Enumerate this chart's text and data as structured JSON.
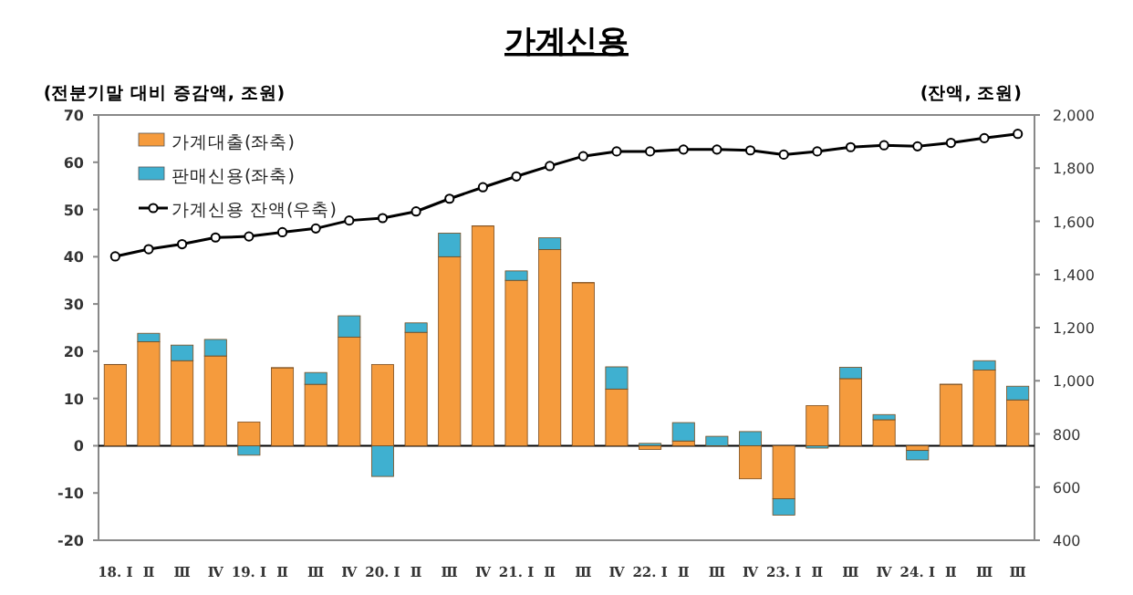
{
  "chart_data": {
    "type": "bar",
    "title": "가계신용",
    "ylabel": "(전분기말 대비 증감액, 조원)",
    "y2label": "(잔액, 조원)",
    "categories": [
      "18. Ⅰ",
      "Ⅱ",
      "Ⅲ",
      "Ⅳ",
      "19. Ⅰ",
      "Ⅱ",
      "Ⅲ",
      "Ⅳ",
      "20. Ⅰ",
      "Ⅱ",
      "Ⅲ",
      "Ⅳ",
      "21. Ⅰ",
      "Ⅱ",
      "Ⅲ",
      "Ⅳ",
      "22. Ⅰ",
      "Ⅱ",
      "Ⅲ",
      "Ⅳ",
      "23. Ⅰ",
      "Ⅱ",
      "Ⅲ",
      "Ⅳ",
      "24. Ⅰ",
      "Ⅱ",
      "Ⅲ",
      "Ⅲ"
    ],
    "stacked": true,
    "legend": "top left",
    "series": [
      {
        "name": "가계대출(좌축)",
        "color": "#f59b3d",
        "values": [
          17.2,
          22,
          18,
          19,
          5,
          16.5,
          13,
          23,
          17.2,
          24,
          40,
          46.5,
          35,
          41.5,
          34.5,
          12,
          -0.8,
          1,
          null,
          -7,
          -11.2,
          8.5,
          14.2,
          5.5,
          -1,
          13,
          16,
          9.7
        ]
      },
      {
        "name": "판매신용(좌축)",
        "color": "#3fb0d0",
        "values": [
          0,
          1.8,
          3.3,
          3.5,
          -2,
          0,
          2.5,
          4.5,
          -6.5,
          2,
          5,
          0,
          2,
          2.5,
          0,
          4.7,
          0.5,
          3.9,
          2,
          3,
          -3.5,
          -0.5,
          2.4,
          1.1,
          -2,
          0,
          2,
          2.9
        ]
      },
      {
        "name": "가계신용 잔액(우축)",
        "type": "line",
        "axis": "y2",
        "color": "#000000",
        "marker": "circle",
        "values": [
          1468,
          1495,
          1514,
          1539,
          1543,
          1559,
          1573,
          1603,
          1612,
          1637,
          1685,
          1728,
          1769,
          1808,
          1845,
          1863,
          1863,
          1870,
          1870,
          1867,
          1851,
          1863,
          1879,
          1886,
          1882,
          1895,
          1913,
          1929
        ]
      }
    ],
    "ylim": [
      -20,
      70
    ],
    "yticks": [
      -20,
      -10,
      0,
      10,
      20,
      30,
      40,
      50,
      60,
      70
    ],
    "y2lim": [
      400,
      2000
    ],
    "y2ticks": [
      {
        "value": 400,
        "label": "400"
      },
      {
        "value": 600,
        "label": "600"
      },
      {
        "value": 800,
        "label": "800"
      },
      {
        "value": 1000,
        "label": "1,000"
      },
      {
        "value": 1200,
        "label": "1,200"
      },
      {
        "value": 1400,
        "label": "1,400"
      },
      {
        "value": 1600,
        "label": "1,600"
      },
      {
        "value": 1800,
        "label": "1,800"
      },
      {
        "value": 2000,
        "label": "2,000"
      }
    ]
  }
}
